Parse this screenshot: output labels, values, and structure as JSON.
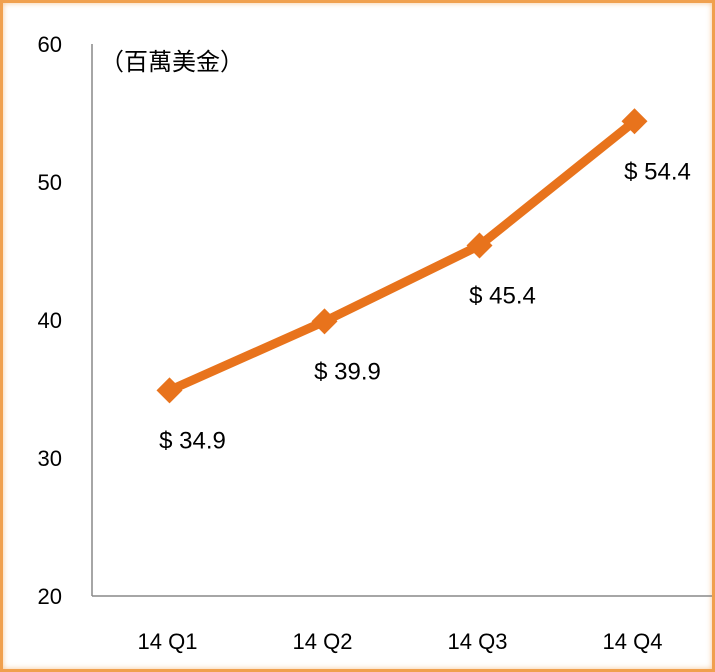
{
  "chart_data": {
    "type": "line",
    "unit_label": "（百萬美金）",
    "categories": [
      "14 Q1",
      "14 Q2",
      "14 Q3",
      "14 Q4"
    ],
    "series": [
      {
        "values": [
          34.9,
          39.9,
          45.4,
          54.4
        ],
        "data_labels": [
          "$ 34.9",
          "$ 39.9",
          "$ 45.4",
          "$ 54.4"
        ],
        "color": "#e8731c"
      }
    ],
    "y_ticks": [
      "20",
      "30",
      "40",
      "50",
      "60"
    ],
    "ylim": [
      20,
      60
    ],
    "grid": false,
    "legend": "none"
  },
  "colors": {
    "frame_border": "#f0a04e",
    "line": "#e8731c",
    "axis": "#888888"
  }
}
